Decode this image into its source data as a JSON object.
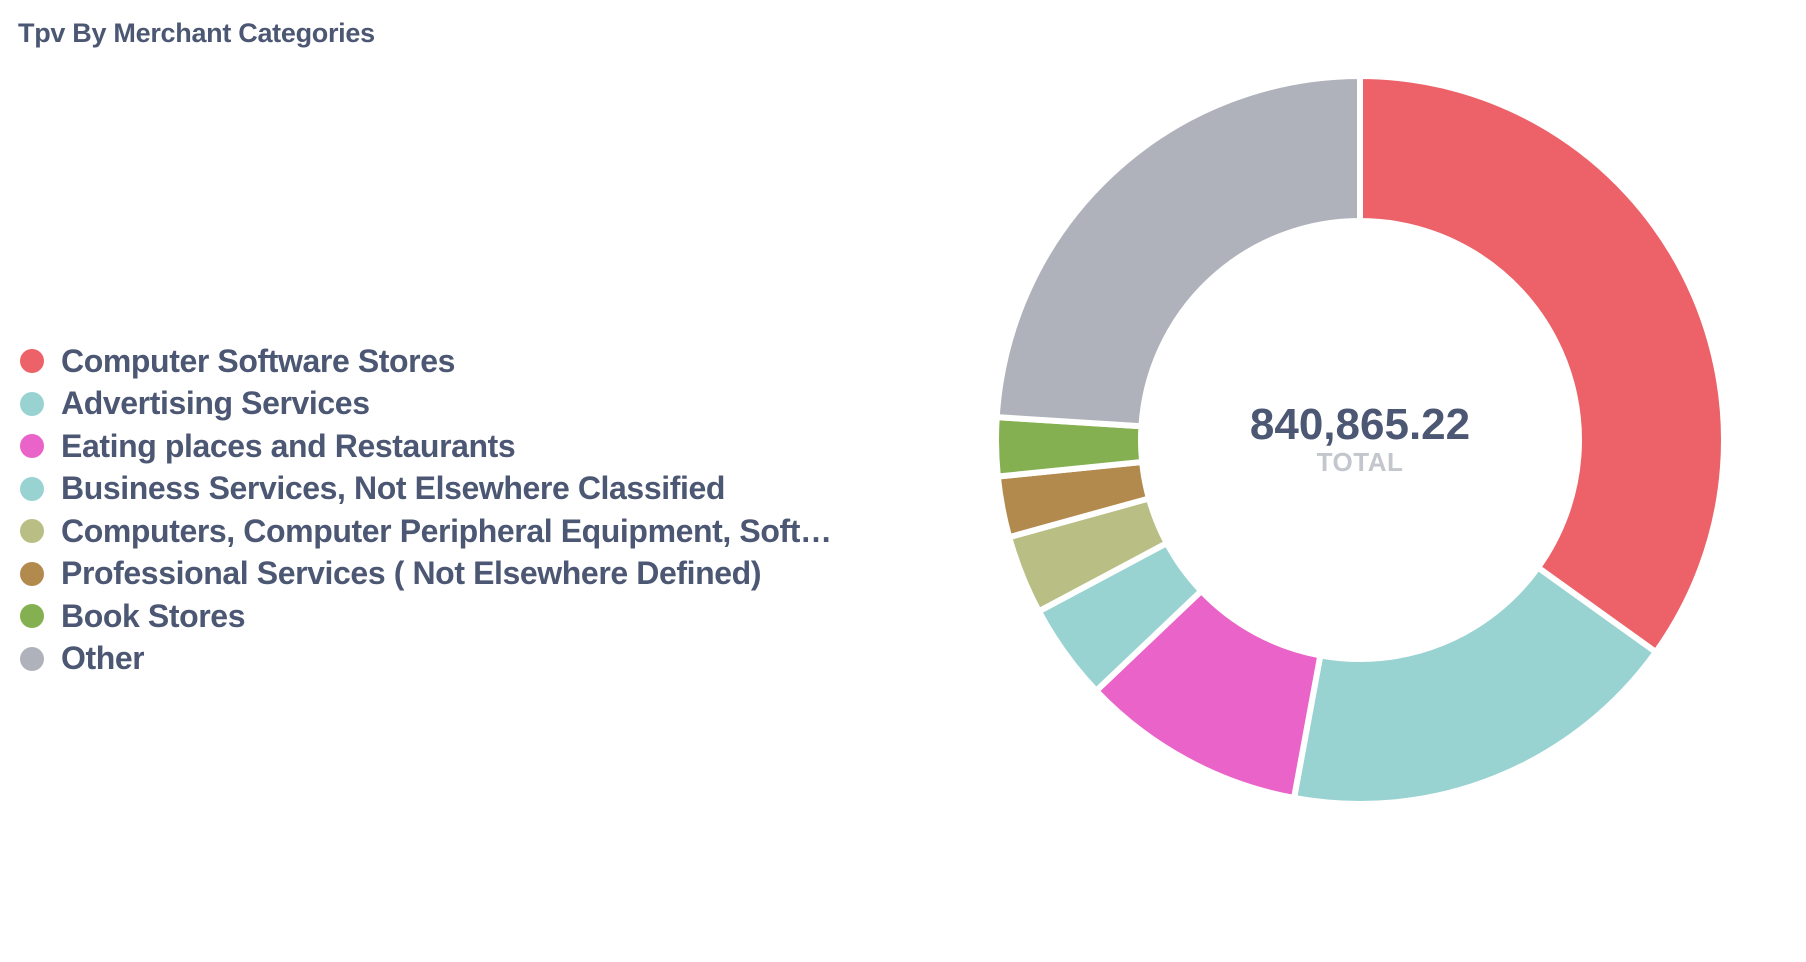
{
  "card": {
    "title": "Tpv By Merchant Categories"
  },
  "chart_data": {
    "type": "pie",
    "variant": "donut",
    "title": "Tpv By Merchant Categories",
    "total_value": "840,865.22",
    "total_label": "TOTAL",
    "legend_position": "left",
    "slices": [
      {
        "label": "Computer Software Stores",
        "value": 293462.96,
        "color": "#ed6168"
      },
      {
        "label": "Advertising Services",
        "value": 151355.74,
        "color": "#98d3d2"
      },
      {
        "label": "Eating places and Restaurants",
        "value": 84086.52,
        "color": "#ea63c8"
      },
      {
        "label": "Business Services, Not Elsewhere Classified",
        "value": 36157.2,
        "color": "#98d3d2"
      },
      {
        "label": "Computers, Computer Peripheral Equipment, Soft…",
        "value": 29430.28,
        "color": "#b9bf84"
      },
      {
        "label": "Professional Services ( Not Elsewhere Defined)",
        "value": 22703.36,
        "color": "#b38a4d"
      },
      {
        "label": "Book Stores",
        "value": 21862.5,
        "color": "#84b051"
      },
      {
        "label": "Other",
        "value": 201806.66,
        "color": "#afb2bb"
      }
    ]
  }
}
